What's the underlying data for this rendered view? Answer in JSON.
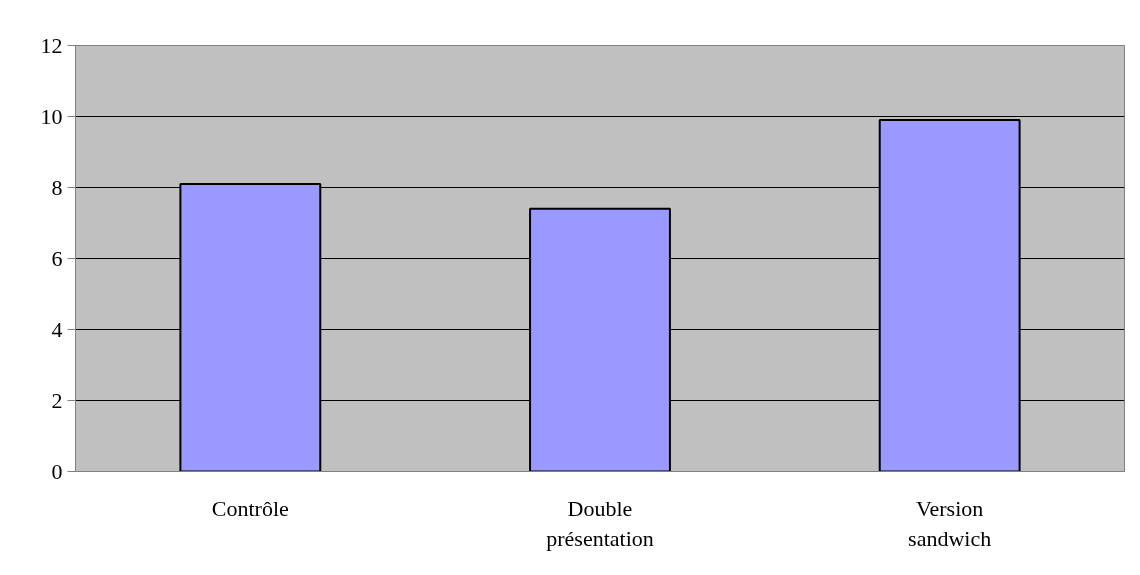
{
  "chart_data": {
    "type": "bar",
    "categories": [
      "Contrôle",
      "Double présentation",
      "Version sandwich"
    ],
    "values": [
      8.1,
      7.4,
      9.9
    ],
    "color": "#9999ff",
    "ylim": [
      0,
      12
    ],
    "yticks": [
      0,
      2,
      4,
      6,
      8,
      10,
      12
    ],
    "grid": "y"
  }
}
